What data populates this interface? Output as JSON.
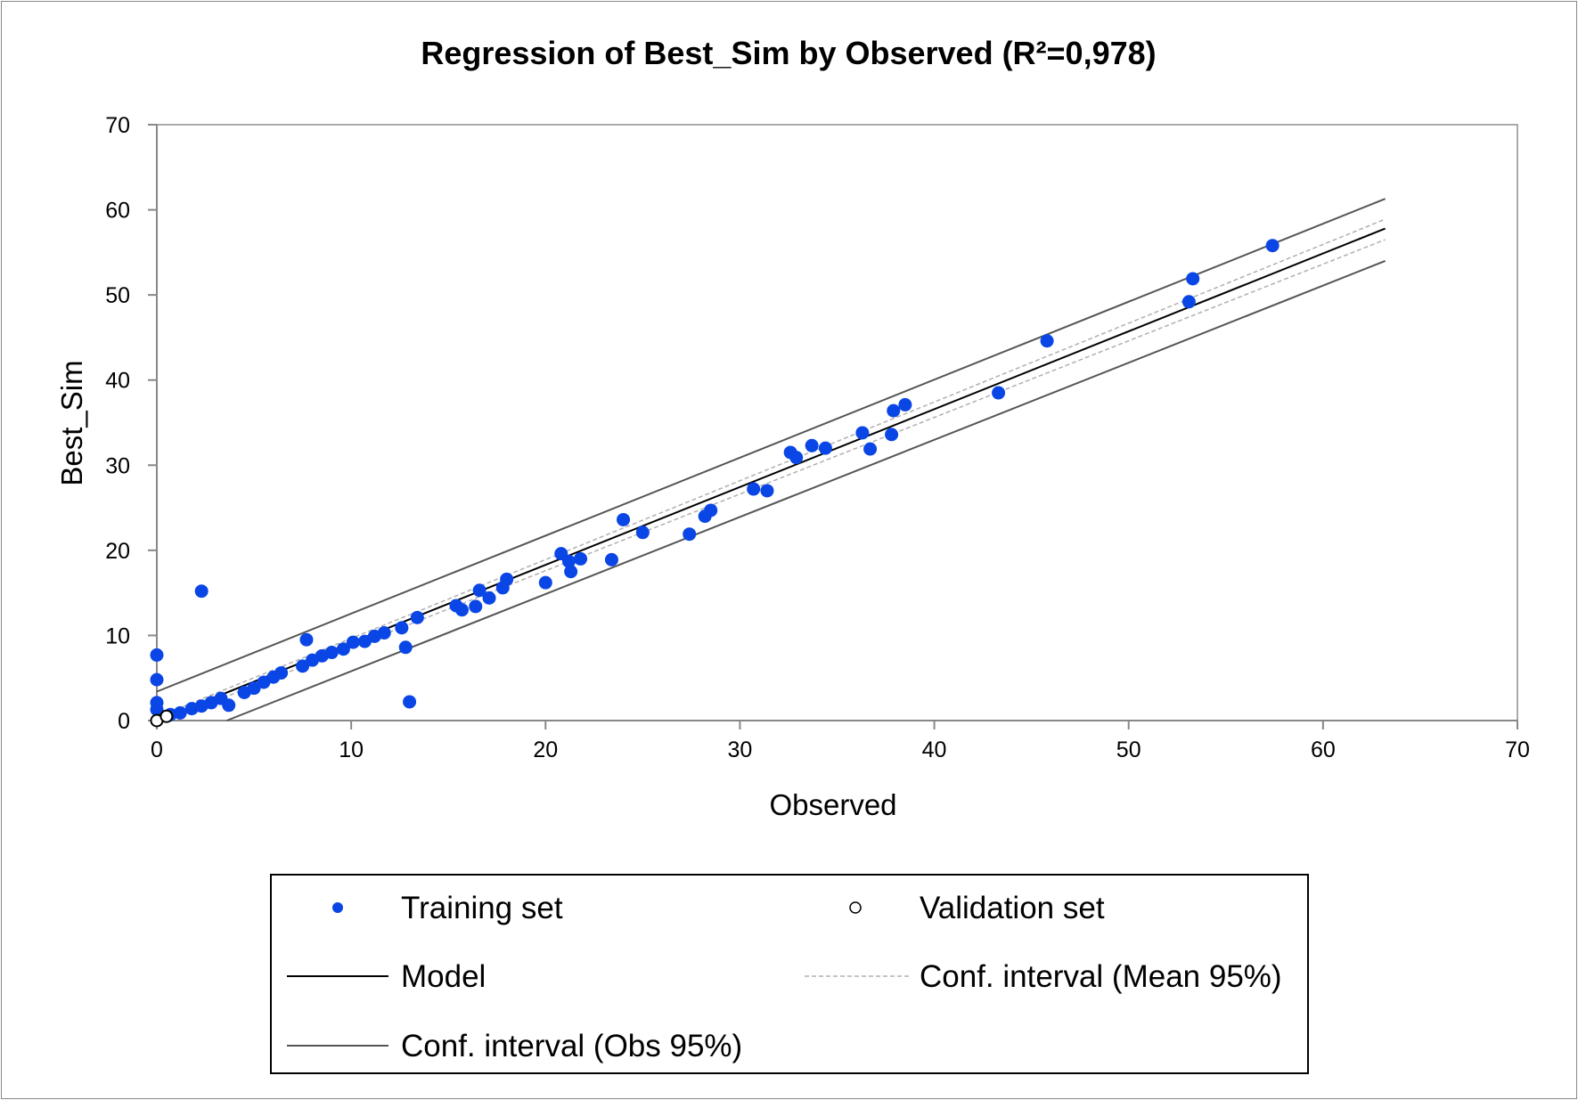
{
  "chart_data": {
    "type": "scatter",
    "title": "Regression of Best_Sim by Observed (R²=0,978)",
    "xlabel": "Observed",
    "ylabel": "Best_Sim",
    "xlim": [
      0,
      70
    ],
    "ylim": [
      0,
      70
    ],
    "xticks": [
      "0",
      "10",
      "20",
      "30",
      "40",
      "50",
      "60",
      "70"
    ],
    "yticks": [
      "0",
      "10",
      "20",
      "30",
      "40",
      "50",
      "60",
      "70"
    ],
    "grid": false,
    "legend_position": "bottom",
    "colors": {
      "training": "#0a46e6",
      "model": "#000000",
      "conf_mean": "#b0b0b0",
      "conf_obs": "#555555"
    },
    "series": [
      {
        "name": "Training set",
        "points": [
          [
            0,
            7.7
          ],
          [
            0,
            4.8
          ],
          [
            0,
            2.1
          ],
          [
            0,
            1.3
          ],
          [
            2.3,
            15.2
          ],
          [
            7.7,
            9.5
          ],
          [
            13.0,
            2.2
          ],
          [
            12.8,
            8.6
          ],
          [
            12.6,
            10.9
          ],
          [
            13.4,
            12.1
          ],
          [
            15.4,
            13.5
          ],
          [
            15.7,
            13.0
          ],
          [
            16.4,
            13.4
          ],
          [
            16.6,
            15.3
          ],
          [
            17.1,
            14.4
          ],
          [
            17.8,
            15.6
          ],
          [
            18.0,
            16.6
          ],
          [
            20.0,
            16.2
          ],
          [
            20.8,
            19.6
          ],
          [
            21.2,
            18.7
          ],
          [
            21.3,
            17.5
          ],
          [
            21.8,
            19.0
          ],
          [
            23.4,
            18.9
          ],
          [
            24.0,
            23.6
          ],
          [
            25.0,
            22.1
          ],
          [
            27.4,
            21.9
          ],
          [
            28.2,
            24.0
          ],
          [
            28.5,
            24.7
          ],
          [
            30.7,
            27.2
          ],
          [
            31.4,
            27.0
          ],
          [
            32.6,
            31.5
          ],
          [
            32.9,
            30.9
          ],
          [
            33.7,
            32.3
          ],
          [
            34.4,
            32.0
          ],
          [
            36.3,
            33.8
          ],
          [
            36.7,
            31.9
          ],
          [
            37.8,
            33.6
          ],
          [
            37.9,
            36.4
          ],
          [
            38.5,
            37.1
          ],
          [
            43.3,
            38.5
          ],
          [
            45.8,
            44.6
          ],
          [
            53.1,
            49.2
          ],
          [
            53.3,
            51.9
          ],
          [
            57.4,
            55.8
          ],
          [
            0.2,
            0.5
          ],
          [
            0.7,
            0.7
          ],
          [
            1.2,
            0.9
          ],
          [
            1.8,
            1.4
          ],
          [
            2.3,
            1.7
          ],
          [
            2.8,
            2.1
          ],
          [
            3.3,
            2.6
          ],
          [
            3.7,
            1.8
          ],
          [
            4.5,
            3.3
          ],
          [
            5.0,
            3.8
          ],
          [
            5.5,
            4.5
          ],
          [
            6.0,
            5.1
          ],
          [
            6.4,
            5.6
          ],
          [
            7.5,
            6.4
          ],
          [
            8.0,
            7.1
          ],
          [
            8.5,
            7.6
          ],
          [
            9.0,
            8.0
          ],
          [
            9.6,
            8.4
          ],
          [
            10.1,
            9.2
          ],
          [
            10.7,
            9.3
          ],
          [
            11.2,
            9.9
          ],
          [
            11.7,
            10.3
          ]
        ]
      },
      {
        "name": "Validation set",
        "points": [
          [
            0,
            0
          ],
          [
            0.5,
            0.5
          ]
        ]
      },
      {
        "name": "Model",
        "line": [
          [
            0,
            0
          ],
          [
            63.2,
            57.8
          ]
        ]
      },
      {
        "name": "Conf. interval (Mean 95%)",
        "upper": [
          [
            0,
            0.4
          ],
          [
            63.2,
            58.9
          ]
        ],
        "lower": [
          [
            0,
            -0.4
          ],
          [
            63.2,
            56.5
          ]
        ]
      },
      {
        "name": "Conf. interval (Obs 95%)",
        "upper": [
          [
            0,
            3.4
          ],
          [
            63.2,
            61.3
          ]
        ],
        "lower": [
          [
            3.6,
            0
          ],
          [
            63.2,
            54.0
          ]
        ]
      }
    ]
  }
}
